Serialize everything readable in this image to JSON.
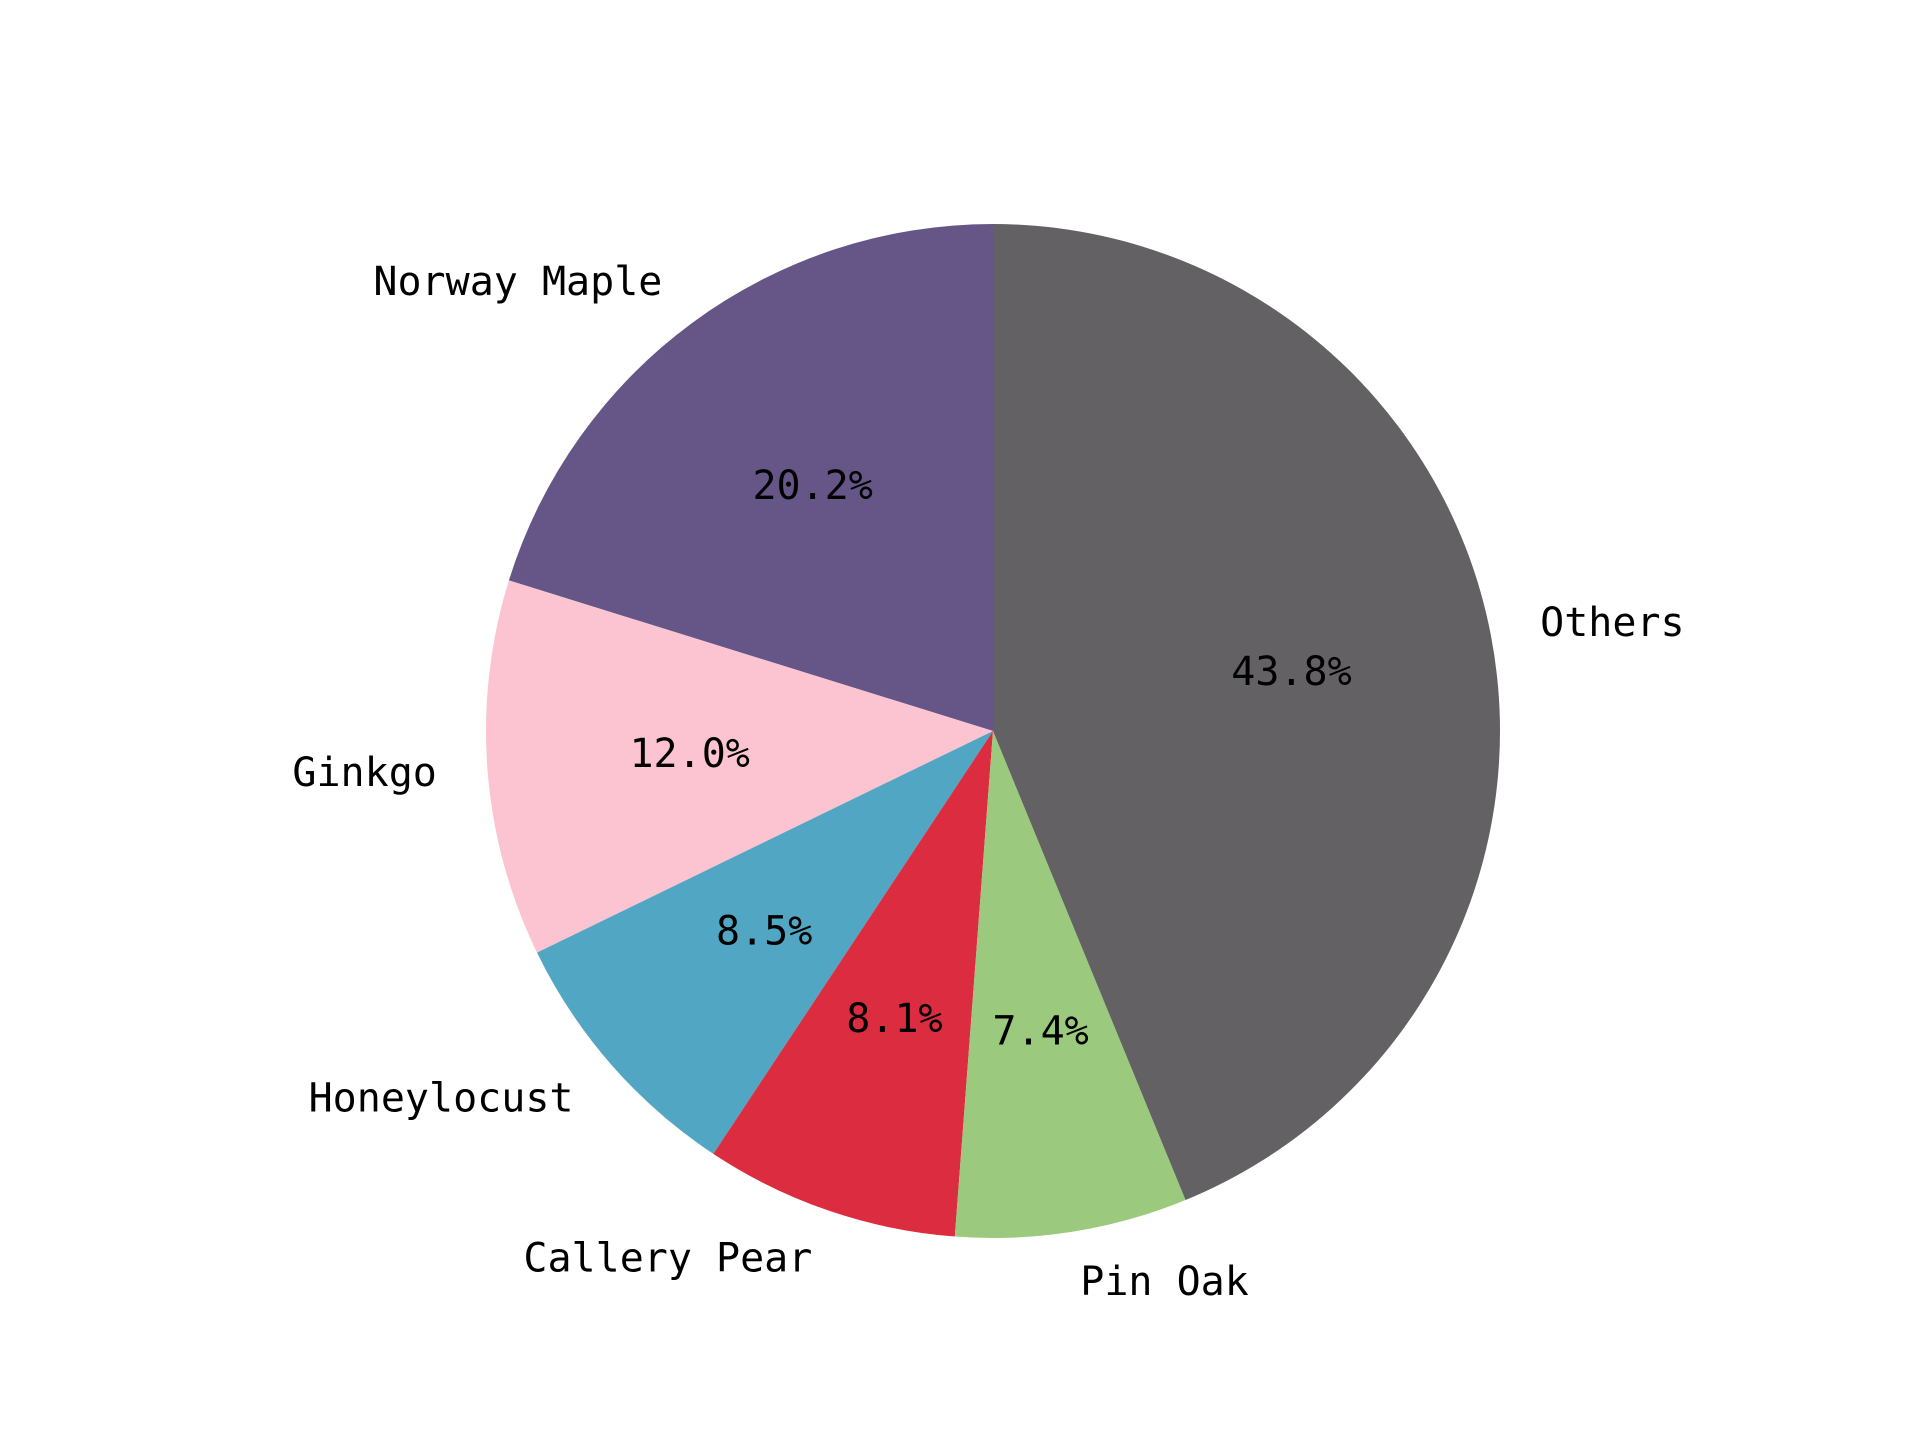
{
  "chart_data": {
    "type": "pie",
    "start": "top",
    "direction": "counterclockwise",
    "slices": [
      {
        "label": "Norway Maple",
        "value": 20.2,
        "pct_label": "20.2%",
        "color": "#665687"
      },
      {
        "label": "Ginkgo",
        "value": 12.0,
        "pct_label": "12.0%",
        "color": "#fcc3d1"
      },
      {
        "label": "Honeylocust",
        "value": 8.5,
        "pct_label": "8.5%",
        "color": "#51a7c3"
      },
      {
        "label": "Callery Pear",
        "value": 8.1,
        "pct_label": "8.1%",
        "color": "#dc2c3f"
      },
      {
        "label": "Pin Oak",
        "value": 7.4,
        "pct_label": "7.4%",
        "color": "#9bca7e"
      },
      {
        "label": "Others",
        "value": 43.8,
        "pct_label": "43.8%",
        "color": "#636164"
      }
    ]
  }
}
